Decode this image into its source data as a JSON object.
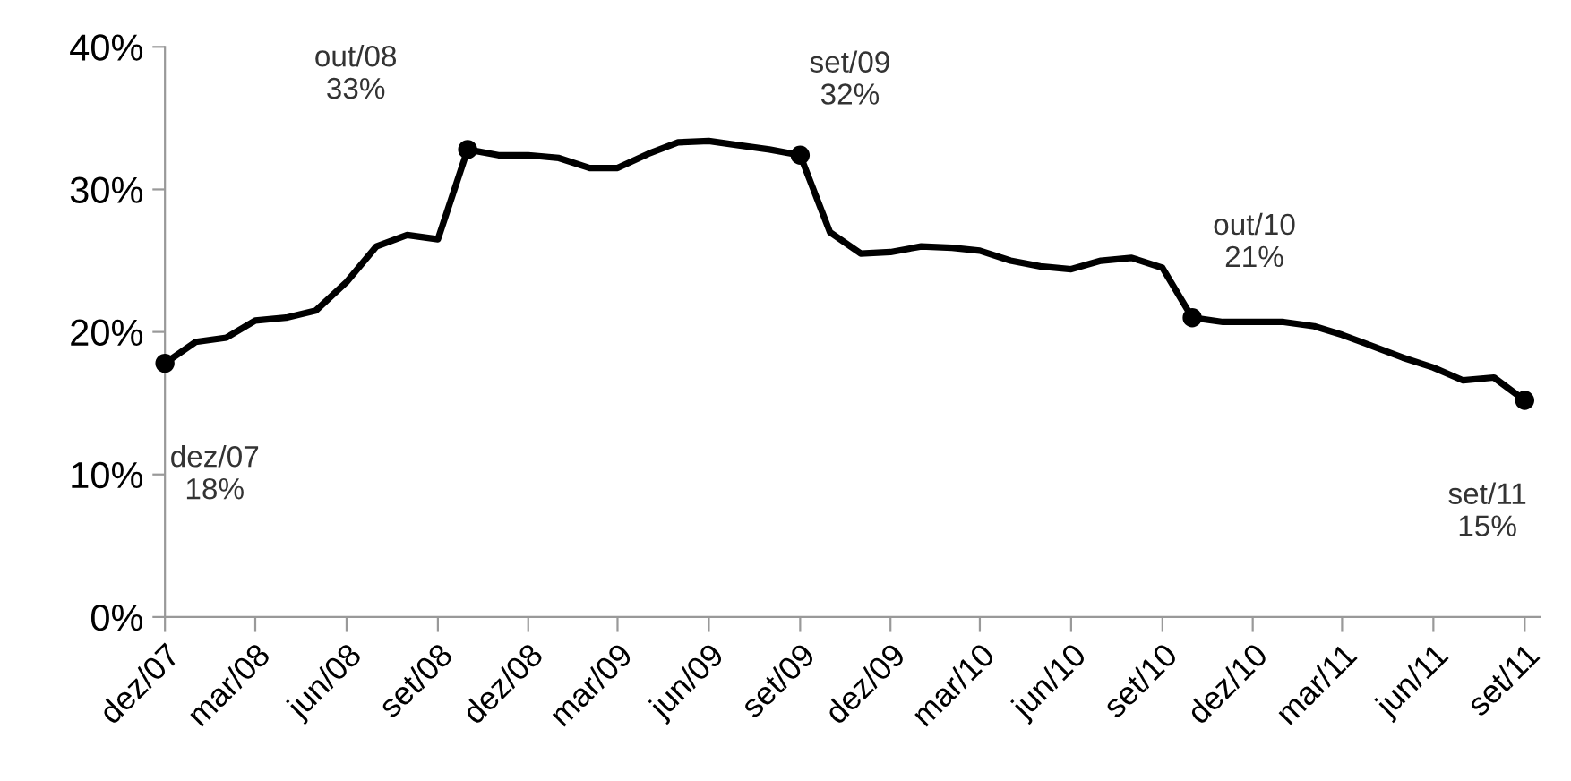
{
  "chart_data": {
    "type": "line",
    "x": [
      "2007-12",
      "2008-01",
      "2008-02",
      "2008-03",
      "2008-04",
      "2008-05",
      "2008-06",
      "2008-07",
      "2008-08",
      "2008-09",
      "2008-10",
      "2008-11",
      "2008-12",
      "2009-01",
      "2009-02",
      "2009-03",
      "2009-04",
      "2009-05",
      "2009-06",
      "2009-07",
      "2009-08",
      "2009-09",
      "2009-10",
      "2009-11",
      "2009-12",
      "2010-01",
      "2010-02",
      "2010-03",
      "2010-04",
      "2010-05",
      "2010-06",
      "2010-07",
      "2010-08",
      "2010-09",
      "2010-10",
      "2010-11",
      "2010-12",
      "2011-01",
      "2011-02",
      "2011-03",
      "2011-04",
      "2011-05",
      "2011-06",
      "2011-07",
      "2011-08",
      "2011-09"
    ],
    "series": [
      {
        "color": "#000000",
        "marker": "none",
        "values": [
          17.8,
          19.3,
          19.6,
          20.8,
          21.0,
          21.5,
          23.5,
          26.0,
          26.8,
          26.5,
          32.8,
          32.4,
          32.4,
          32.2,
          31.5,
          31.5,
          32.5,
          33.3,
          33.4,
          33.1,
          32.8,
          32.4,
          27.0,
          25.5,
          25.6,
          26.0,
          25.9,
          25.7,
          25.0,
          24.6,
          24.4,
          25.0,
          25.2,
          24.5,
          21.0,
          20.7,
          20.7,
          20.7,
          20.4,
          19.8,
          19.0,
          18.2,
          17.5,
          16.6,
          16.8,
          15.2
        ]
      },
      {
        "type": "scatter",
        "marker": "circle",
        "color": "#000000",
        "x": [
          "2007-12",
          "2008-10",
          "2009-09",
          "2010-10",
          "2011-09"
        ],
        "values": [
          17.8,
          32.8,
          32.4,
          21.0,
          15.2
        ]
      }
    ],
    "annotations": [
      {
        "text": "dez/07\n18%",
        "x": "2007-12",
        "y": 17.8
      },
      {
        "text": "out/08\n33%",
        "x": "2008-10",
        "y": 32.8
      },
      {
        "text": "set/09\n32%",
        "x": "2009-09",
        "y": 32.4
      },
      {
        "text": "out/10\n21%",
        "x": "2010-10",
        "y": 21.0
      },
      {
        "text": "set/11\n15%",
        "x": "2011-09",
        "y": 15.2
      }
    ],
    "xlim": [
      "2007-12",
      "2011-09-16"
    ],
    "xticks": [
      {
        "value": "2007-12",
        "label": "dez/07"
      },
      {
        "value": "2008-03",
        "label": "mar/08"
      },
      {
        "value": "2008-06",
        "label": "jun/08"
      },
      {
        "value": "2008-09",
        "label": "set/08"
      },
      {
        "value": "2008-12",
        "label": "dez/08"
      },
      {
        "value": "2009-03",
        "label": "mar/09"
      },
      {
        "value": "2009-06",
        "label": "jun/09"
      },
      {
        "value": "2009-09",
        "label": "set/09"
      },
      {
        "value": "2009-12",
        "label": "dez/09"
      },
      {
        "value": "2010-03",
        "label": "mar/10"
      },
      {
        "value": "2010-06",
        "label": "jun/10"
      },
      {
        "value": "2010-09",
        "label": "set/10"
      },
      {
        "value": "2010-12",
        "label": "dez/10"
      },
      {
        "value": "2011-03",
        "label": "mar/11"
      },
      {
        "value": "2011-06",
        "label": "jun/11"
      },
      {
        "value": "2011-09",
        "label": "set/11"
      }
    ],
    "ylim": [
      0,
      40
    ],
    "yticks": [
      {
        "value": 0,
        "label": "0%"
      },
      {
        "value": 10,
        "label": "10%"
      },
      {
        "value": 20,
        "label": "20%"
      },
      {
        "value": 30,
        "label": "30%"
      },
      {
        "value": 40,
        "label": "40%"
      }
    ],
    "grid": false,
    "legend": false,
    "line_style": "solid"
  }
}
